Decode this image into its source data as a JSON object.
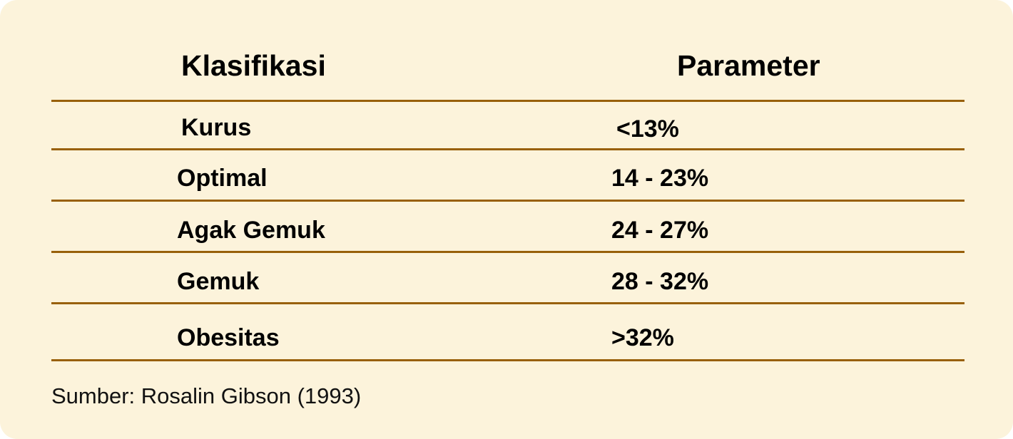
{
  "table": {
    "headers": {
      "classification": "Klasifikasi",
      "parameter": "Parameter"
    },
    "rows": [
      {
        "classification": "Kurus",
        "parameter": "<13%"
      },
      {
        "classification": "Optimal",
        "parameter": "14 - 23%"
      },
      {
        "classification": "Agak Gemuk",
        "parameter": "24 - 27%"
      },
      {
        "classification": "Gemuk",
        "parameter": "28 - 32%"
      },
      {
        "classification": "Obesitas",
        "parameter": ">32%"
      }
    ]
  },
  "source": "Sumber: Rosalin Gibson (1993)",
  "colors": {
    "background": "#fcf3db",
    "rule": "#98600a",
    "text": "#000000"
  }
}
